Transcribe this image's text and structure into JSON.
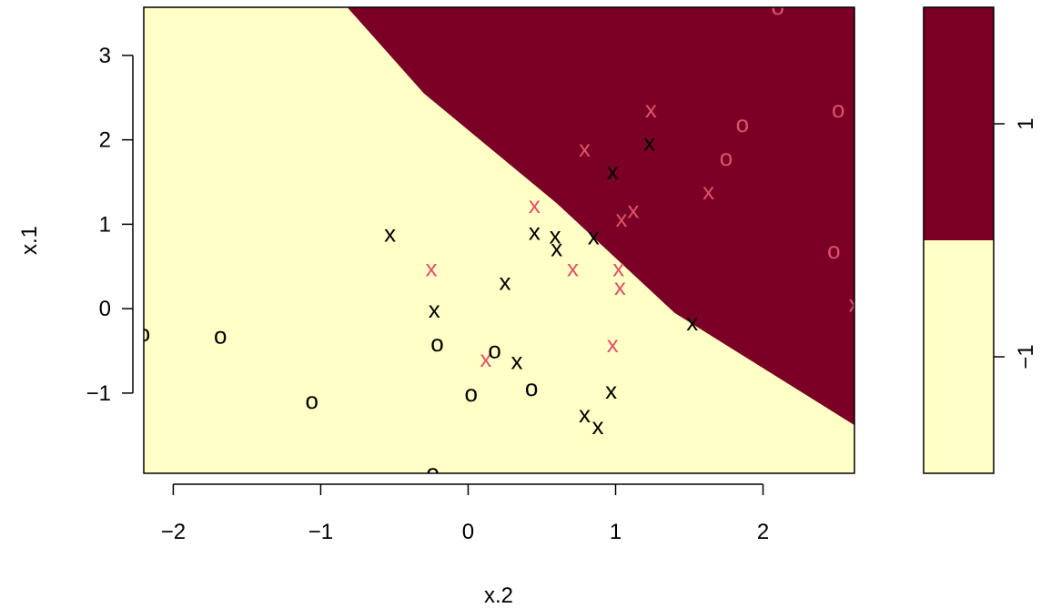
{
  "colors": {
    "region_neg": "#FFFFC6",
    "region_pos": "#7A0025",
    "support_vector": "#000000",
    "non_support": "#DF536B",
    "axis": "#000000"
  },
  "chart_data": {
    "type": "scatter",
    "plot": "svm-classification",
    "xlabel": "x.2",
    "ylabel": "x.1",
    "xlim": [
      -2.2,
      2.62
    ],
    "ylim": [
      -1.95,
      3.57
    ],
    "xticks": [
      -2,
      -1,
      0,
      1,
      2
    ],
    "yticks": [
      -1,
      0,
      1,
      2,
      3
    ],
    "xtick_labels": [
      "−2",
      "−1",
      "0",
      "1",
      "2"
    ],
    "ytick_labels": [
      "−1",
      "0",
      "1",
      "2",
      "3"
    ],
    "decision_boundary": [
      {
        "x": -0.82,
        "y": 3.57
      },
      {
        "x": -0.3,
        "y": 2.55
      },
      {
        "x": 0.6,
        "y": 1.25
      },
      {
        "x": 1.4,
        "y": -0.05
      },
      {
        "x": 2.62,
        "y": -1.38
      }
    ],
    "legend": {
      "placement": "right",
      "entries": [
        {
          "label": "1",
          "color": "#7A0025"
        },
        {
          "label": "−1",
          "color": "#FFFFC6"
        }
      ]
    },
    "points": [
      {
        "x": -2.2,
        "y": -0.3,
        "symbol": "o",
        "sv": true
      },
      {
        "x": -1.68,
        "y": -0.33,
        "symbol": "o",
        "sv": true
      },
      {
        "x": -1.06,
        "y": -1.1,
        "symbol": "o",
        "sv": true
      },
      {
        "x": -0.53,
        "y": 0.88,
        "symbol": "x",
        "sv": true
      },
      {
        "x": -0.25,
        "y": 0.47,
        "symbol": "x",
        "sv": false
      },
      {
        "x": -0.23,
        "y": -0.02,
        "symbol": "x",
        "sv": true
      },
      {
        "x": -0.21,
        "y": -0.42,
        "symbol": "o",
        "sv": true
      },
      {
        "x": -0.24,
        "y": -1.95,
        "symbol": "o",
        "sv": true
      },
      {
        "x": 0.02,
        "y": -1.01,
        "symbol": "o",
        "sv": true
      },
      {
        "x": 0.12,
        "y": -0.6,
        "symbol": "x",
        "sv": false
      },
      {
        "x": 0.18,
        "y": -0.5,
        "symbol": "o",
        "sv": true
      },
      {
        "x": 0.25,
        "y": 0.31,
        "symbol": "x",
        "sv": true
      },
      {
        "x": 0.33,
        "y": -0.63,
        "symbol": "x",
        "sv": true
      },
      {
        "x": 0.43,
        "y": -0.95,
        "symbol": "o",
        "sv": true
      },
      {
        "x": 0.45,
        "y": 0.9,
        "symbol": "x",
        "sv": true
      },
      {
        "x": 0.45,
        "y": 1.22,
        "symbol": "x",
        "sv": false
      },
      {
        "x": 0.59,
        "y": 0.86,
        "symbol": "x",
        "sv": true
      },
      {
        "x": 0.6,
        "y": 0.71,
        "symbol": "x",
        "sv": true
      },
      {
        "x": 0.71,
        "y": 0.47,
        "symbol": "x",
        "sv": false
      },
      {
        "x": 0.79,
        "y": 1.89,
        "symbol": "x",
        "sv": false
      },
      {
        "x": 0.79,
        "y": -1.26,
        "symbol": "x",
        "sv": true
      },
      {
        "x": 0.85,
        "y": 0.85,
        "symbol": "x",
        "sv": true
      },
      {
        "x": 0.88,
        "y": -1.4,
        "symbol": "x",
        "sv": true
      },
      {
        "x": 0.97,
        "y": -0.98,
        "symbol": "x",
        "sv": true
      },
      {
        "x": 0.98,
        "y": 1.62,
        "symbol": "x",
        "sv": true
      },
      {
        "x": 0.98,
        "y": -0.43,
        "symbol": "x",
        "sv": false
      },
      {
        "x": 1.02,
        "y": 0.47,
        "symbol": "x",
        "sv": false
      },
      {
        "x": 1.03,
        "y": 0.25,
        "symbol": "x",
        "sv": false
      },
      {
        "x": 1.04,
        "y": 1.06,
        "symbol": "x",
        "sv": false
      },
      {
        "x": 1.12,
        "y": 1.16,
        "symbol": "x",
        "sv": false
      },
      {
        "x": 1.23,
        "y": 1.96,
        "symbol": "x",
        "sv": true
      },
      {
        "x": 1.24,
        "y": 2.35,
        "symbol": "x",
        "sv": false
      },
      {
        "x": 1.52,
        "y": -0.17,
        "symbol": "x",
        "sv": true
      },
      {
        "x": 1.63,
        "y": 1.38,
        "symbol": "x",
        "sv": false
      },
      {
        "x": 1.75,
        "y": 1.78,
        "symbol": "o",
        "sv": false
      },
      {
        "x": 1.86,
        "y": 2.18,
        "symbol": "o",
        "sv": false
      },
      {
        "x": 2.1,
        "y": 3.57,
        "symbol": "o",
        "sv": false
      },
      {
        "x": 2.48,
        "y": 0.68,
        "symbol": "o",
        "sv": false
      },
      {
        "x": 2.51,
        "y": 2.35,
        "symbol": "o",
        "sv": false
      },
      {
        "x": 2.62,
        "y": 0.05,
        "symbol": "x",
        "sv": false
      }
    ]
  }
}
